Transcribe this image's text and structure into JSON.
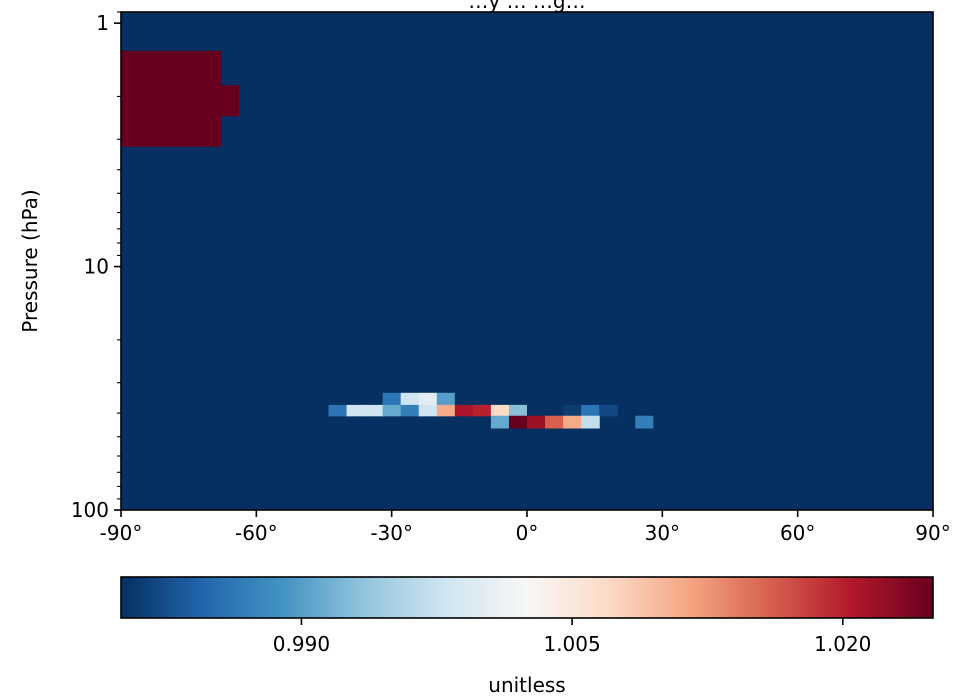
{
  "chart_data": {
    "type": "heatmap",
    "title": "…y … …g…",
    "xlabel": "",
    "ylabel": "Pressure (hPa)",
    "x_ticks": [
      "-90°",
      "-60°",
      "-30°",
      "0°",
      "30°",
      "60°",
      "90°"
    ],
    "x_tick_values": [
      -90,
      -60,
      -30,
      0,
      30,
      60,
      90
    ],
    "xlim": [
      -90,
      90
    ],
    "y_scale": "log",
    "y_ticks": [
      "1",
      "10",
      "100"
    ],
    "y_tick_values": [
      1,
      10,
      100
    ],
    "ylim": [
      100,
      0.9
    ],
    "background_value": 0.98,
    "cells": [
      {
        "lat_range": [
          -90,
          -68
        ],
        "pressure_range": [
          1.3,
          3.2
        ],
        "value": 1.025
      },
      {
        "lat_range": [
          -68,
          -64
        ],
        "pressure_range": [
          1.8,
          2.4
        ],
        "value": 1.025
      },
      {
        "lat_range": [
          -32,
          -28
        ],
        "pressure_range": [
          33,
          37
        ],
        "value": 0.986
      },
      {
        "lat_range": [
          -28,
          -24
        ],
        "pressure_range": [
          33,
          37
        ],
        "value": 0.998
      },
      {
        "lat_range": [
          -24,
          -20
        ],
        "pressure_range": [
          33,
          37
        ],
        "value": 1.0
      },
      {
        "lat_range": [
          -20,
          -16
        ],
        "pressure_range": [
          33,
          37
        ],
        "value": 0.99
      },
      {
        "lat_range": [
          -16,
          -12
        ],
        "pressure_range": [
          33,
          37
        ],
        "value": 0.978
      },
      {
        "lat_range": [
          -44,
          -40
        ],
        "pressure_range": [
          37,
          41
        ],
        "value": 0.986
      },
      {
        "lat_range": [
          -40,
          -36
        ],
        "pressure_range": [
          37,
          41
        ],
        "value": 0.998
      },
      {
        "lat_range": [
          -36,
          -32
        ],
        "pressure_range": [
          37,
          41
        ],
        "value": 0.998
      },
      {
        "lat_range": [
          -32,
          -28
        ],
        "pressure_range": [
          37,
          41
        ],
        "value": 0.991
      },
      {
        "lat_range": [
          -28,
          -24
        ],
        "pressure_range": [
          37,
          41
        ],
        "value": 0.987
      },
      {
        "lat_range": [
          -24,
          -20
        ],
        "pressure_range": [
          37,
          41
        ],
        "value": 0.998
      },
      {
        "lat_range": [
          -20,
          -16
        ],
        "pressure_range": [
          37,
          41
        ],
        "value": 1.011
      },
      {
        "lat_range": [
          -16,
          -12
        ],
        "pressure_range": [
          37,
          41
        ],
        "value": 1.021
      },
      {
        "lat_range": [
          -12,
          -8
        ],
        "pressure_range": [
          37,
          41
        ],
        "value": 1.02
      },
      {
        "lat_range": [
          -8,
          -4
        ],
        "pressure_range": [
          37,
          41
        ],
        "value": 1.007
      },
      {
        "lat_range": [
          -4,
          0
        ],
        "pressure_range": [
          37,
          41
        ],
        "value": 0.993
      },
      {
        "lat_range": [
          0,
          4
        ],
        "pressure_range": [
          37,
          41
        ],
        "value": 0.979
      },
      {
        "lat_range": [
          8,
          12
        ],
        "pressure_range": [
          37,
          41
        ],
        "value": 0.981
      },
      {
        "lat_range": [
          12,
          16
        ],
        "pressure_range": [
          37,
          41
        ],
        "value": 0.986
      },
      {
        "lat_range": [
          16,
          20
        ],
        "pressure_range": [
          37,
          41
        ],
        "value": 0.982
      },
      {
        "lat_range": [
          -8,
          -4
        ],
        "pressure_range": [
          41,
          46
        ],
        "value": 0.991
      },
      {
        "lat_range": [
          -4,
          0
        ],
        "pressure_range": [
          41,
          46
        ],
        "value": 1.025
      },
      {
        "lat_range": [
          0,
          4
        ],
        "pressure_range": [
          41,
          46
        ],
        "value": 1.022
      },
      {
        "lat_range": [
          4,
          8
        ],
        "pressure_range": [
          41,
          46
        ],
        "value": 1.016
      },
      {
        "lat_range": [
          8,
          12
        ],
        "pressure_range": [
          41,
          46
        ],
        "value": 1.011
      },
      {
        "lat_range": [
          12,
          16
        ],
        "pressure_range": [
          41,
          46
        ],
        "value": 0.997
      },
      {
        "lat_range": [
          24,
          28
        ],
        "pressure_range": [
          41,
          46
        ],
        "value": 0.987
      },
      {
        "lat_range": [
          28,
          32
        ],
        "pressure_range": [
          41,
          46
        ],
        "value": 0.98
      }
    ],
    "colorbar": {
      "colormap": "RdBu_r",
      "range": [
        0.98,
        1.025
      ],
      "ticks": [
        "0.990",
        "1.005",
        "1.020"
      ],
      "tick_values": [
        0.99,
        1.005,
        1.02
      ],
      "label": "unitless"
    }
  }
}
